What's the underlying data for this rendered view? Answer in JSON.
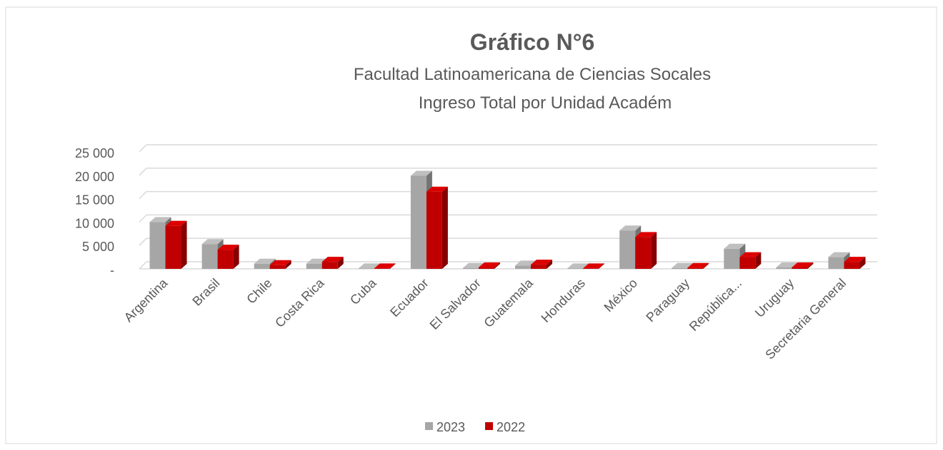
{
  "chart_data": {
    "type": "bar3d",
    "title": "Gráfico N°6",
    "subtitle": [
      "Facultad Latinoamericana de Ciencias Socales",
      "Ingreso Total por Unidad Académ"
    ],
    "categories": [
      "Argentina",
      "Brasil",
      "Chile",
      "Costa Rica",
      "Cuba",
      "Ecuador",
      "El Salvador",
      "Guatemala",
      "Honduras",
      "México",
      "Paraguay",
      "República...",
      "Uruguay",
      "Secretaria General"
    ],
    "series": [
      {
        "name": "2023",
        "color": "#a6a6a6",
        "values": [
          10000,
          5300,
          1100,
          1100,
          100,
          19900,
          200,
          700,
          100,
          8200,
          200,
          4300,
          300,
          2500
        ]
      },
      {
        "name": "2022",
        "color": "#c00000",
        "values": [
          9200,
          4100,
          800,
          1500,
          100,
          16500,
          300,
          900,
          100,
          6800,
          200,
          2500,
          300,
          1500
        ]
      }
    ],
    "ylim": [
      0,
      25000
    ],
    "yticks": [
      {
        "value": 0,
        "label": "-"
      },
      {
        "value": 5000,
        "label": "5 000"
      },
      {
        "value": 10000,
        "label": "10 000"
      },
      {
        "value": 15000,
        "label": "15 000"
      },
      {
        "value": 20000,
        "label": "20 000"
      },
      {
        "value": 25000,
        "label": "25 000"
      }
    ],
    "grid": true,
    "legend": "bottom"
  }
}
